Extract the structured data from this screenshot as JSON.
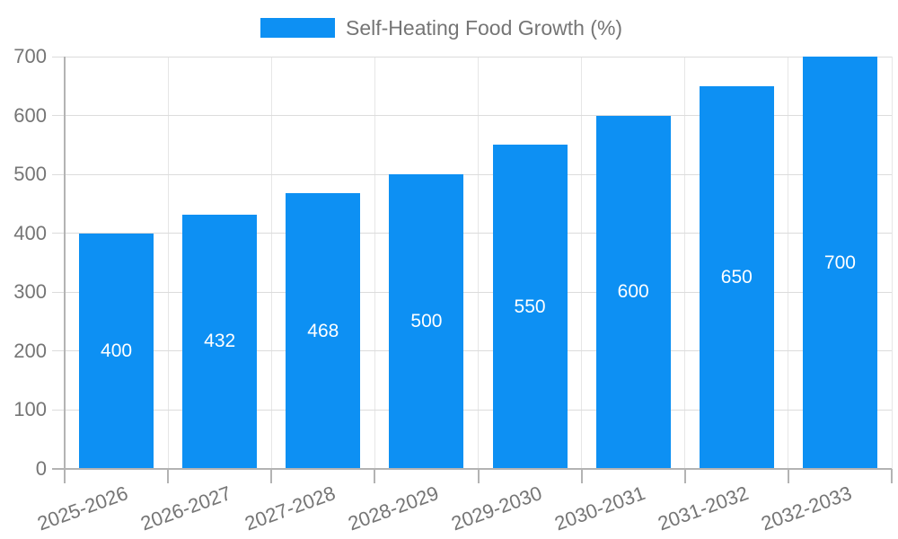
{
  "chart_data": {
    "type": "bar",
    "legend": "Self-Heating Food Growth (%)",
    "legend_position": "top-center",
    "categories": [
      "2025-2026",
      "2026-2027",
      "2027-2028",
      "2028-2029",
      "2029-2030",
      "2030-2031",
      "2031-2032",
      "2032-2033"
    ],
    "values": [
      400,
      432,
      468,
      500,
      550,
      600,
      650,
      700
    ],
    "bar_value_labels": [
      "400",
      "432",
      "468",
      "500",
      "550",
      "600",
      "650",
      "700"
    ],
    "title": "",
    "xlabel": "",
    "ylabel": "",
    "ylim": [
      0,
      700
    ],
    "ytick_step": 100,
    "ytick_labels": [
      "0",
      "100",
      "200",
      "300",
      "400",
      "500",
      "600",
      "700"
    ],
    "grid": true,
    "colors": {
      "bar": "#0d90f3",
      "bar_label_text": "#ffffff",
      "axis_text": "#757575",
      "h_gridline": "#dcdcdc",
      "v_gridline": "#e6e6e6",
      "axis_line": "#b3b3b3",
      "background": "#ffffff"
    }
  }
}
